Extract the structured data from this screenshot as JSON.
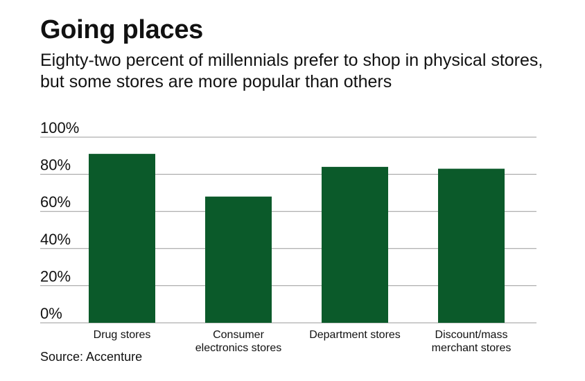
{
  "chart_data": {
    "type": "bar",
    "title": "Going places",
    "subtitle": "Eighty-two percent of millennials prefer to shop in physical stores, but some stores are more popular than others",
    "categories": [
      [
        "Drug stores"
      ],
      [
        "Consumer",
        "electronics stores"
      ],
      [
        "Department stores"
      ],
      [
        "Discount/mass",
        "merchant stores"
      ]
    ],
    "values": [
      91,
      68,
      84,
      83
    ],
    "ylim": [
      0,
      100
    ],
    "yticks": [
      0,
      20,
      40,
      60,
      80,
      100
    ],
    "ytick_labels": [
      "0%",
      "20%",
      "40%",
      "60%",
      "80%",
      "100%"
    ],
    "grid": true,
    "bar_color": "#0b5a2a",
    "source": "Source: Accenture"
  }
}
